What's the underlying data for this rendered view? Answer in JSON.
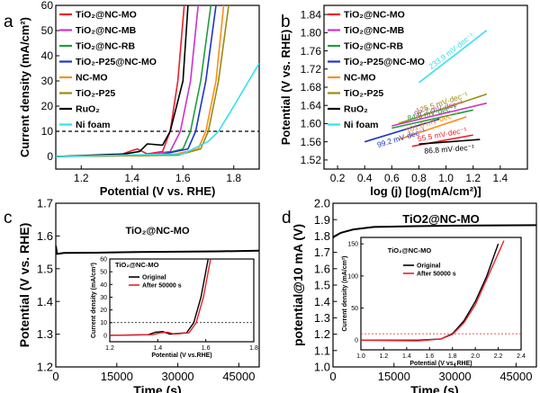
{
  "chart_data": [
    {
      "type": "line",
      "panel_label": "a",
      "xlabel": "Potential (V vs. RHE)",
      "ylabel": "Current density (mA/cm²)",
      "xlim": [
        1.1,
        1.9
      ],
      "ylim": [
        -5,
        60
      ],
      "xticks": [
        1.2,
        1.4,
        1.6,
        1.8
      ],
      "yticks": [
        0,
        10,
        20,
        30,
        40,
        50,
        60
      ],
      "reference_line": {
        "y": 10,
        "style": "dashed"
      },
      "legend_position": "top-left",
      "series": [
        {
          "name": "TiO₂@NC-MO",
          "color": "#e8202a",
          "points": [
            [
              1.1,
              0
            ],
            [
              1.35,
              0.5
            ],
            [
              1.39,
              2
            ],
            [
              1.42,
              3
            ],
            [
              1.46,
              1
            ],
            [
              1.52,
              2
            ],
            [
              1.55,
              10
            ],
            [
              1.58,
              30
            ],
            [
              1.605,
              60
            ]
          ]
        },
        {
          "name": "TiO₂@NC-MB",
          "color": "#cc33cc",
          "points": [
            [
              1.1,
              0
            ],
            [
              1.45,
              0.5
            ],
            [
              1.55,
              2
            ],
            [
              1.59,
              10
            ],
            [
              1.63,
              30
            ],
            [
              1.66,
              60
            ]
          ]
        },
        {
          "name": "TiO₂@NC-RB",
          "color": "#1f9e3c",
          "points": [
            [
              1.1,
              0
            ],
            [
              1.5,
              0.5
            ],
            [
              1.6,
              3
            ],
            [
              1.63,
              10
            ],
            [
              1.67,
              30
            ],
            [
              1.71,
              60
            ]
          ]
        },
        {
          "name": "TiO₂-P25@NC-MO",
          "color": "#1c34c9",
          "points": [
            [
              1.1,
              0
            ],
            [
              1.5,
              0.5
            ],
            [
              1.62,
              3
            ],
            [
              1.65,
              10
            ],
            [
              1.69,
              30
            ],
            [
              1.73,
              60
            ]
          ]
        },
        {
          "name": "NC-MO",
          "color": "#ff8c1a",
          "points": [
            [
              1.1,
              0
            ],
            [
              1.55,
              0.5
            ],
            [
              1.66,
              3
            ],
            [
              1.69,
              10
            ],
            [
              1.73,
              30
            ],
            [
              1.76,
              60
            ]
          ]
        },
        {
          "name": "TiO₂-P25",
          "color": "#9a8c10",
          "points": [
            [
              1.1,
              0
            ],
            [
              1.58,
              0.5
            ],
            [
              1.67,
              3
            ],
            [
              1.7,
              10
            ],
            [
              1.74,
              30
            ],
            [
              1.78,
              60
            ]
          ]
        },
        {
          "name": "RuO₂",
          "color": "#000000",
          "points": [
            [
              1.1,
              0
            ],
            [
              1.37,
              1
            ],
            [
              1.43,
              2
            ],
            [
              1.46,
              5
            ],
            [
              1.52,
              4.5
            ],
            [
              1.55,
              10
            ],
            [
              1.6,
              30
            ],
            [
              1.62,
              60
            ]
          ]
        },
        {
          "name": "Ni foam",
          "color": "#33e0f0",
          "points": [
            [
              1.1,
              0
            ],
            [
              1.6,
              1
            ],
            [
              1.7,
              6
            ],
            [
              1.74,
              10
            ],
            [
              1.8,
              20
            ],
            [
              1.9,
              37
            ]
          ]
        }
      ]
    },
    {
      "type": "line",
      "panel_label": "b",
      "xlabel": "log (j) [log(mA/cm²)]",
      "ylabel": "Potential (V vs. RHE)",
      "xlim": [
        0.1,
        1.6
      ],
      "ylim": [
        1.5,
        1.86
      ],
      "xticks": [
        0.2,
        0.4,
        0.6,
        0.8,
        1.0,
        1.2,
        1.4
      ],
      "yticks": [
        1.52,
        1.56,
        1.6,
        1.64,
        1.68,
        1.72,
        1.76,
        1.8,
        1.84
      ],
      "legend_position": "top-left",
      "series": [
        {
          "name": "TiO₂@NC-MO",
          "color": "#e8202a",
          "tafel_label": "55.5 mV·dec⁻¹",
          "points": [
            [
              0.75,
              1.55
            ],
            [
              1.2,
              1.575
            ]
          ]
        },
        {
          "name": "TiO₂@NC-MB",
          "color": "#cc33cc",
          "tafel_label": "97.7 mV·dec⁻¹",
          "points": [
            [
              0.6,
              1.595
            ],
            [
              1.3,
              1.645
            ]
          ]
        },
        {
          "name": "TiO₂@NC-RB",
          "color": "#1f9e3c",
          "tafel_label": "84.5 mV·dec⁻¹",
          "points": [
            [
              0.6,
              1.59
            ],
            [
              1.2,
              1.63
            ]
          ]
        },
        {
          "name": "TiO₂-P25@NC-MO",
          "color": "#1c34c9",
          "tafel_label": "99.2 mV·dec⁻¹",
          "points": [
            [
              0.4,
              1.56
            ],
            [
              0.95,
              1.61
            ]
          ]
        },
        {
          "name": "NC-MO",
          "color": "#ff8c1a",
          "tafel_label": "101.8 mV·dec⁻¹",
          "points": [
            [
              0.65,
              1.565
            ],
            [
              1.15,
              1.615
            ]
          ]
        },
        {
          "name": "TiO₂-P25",
          "color": "#9a8c10",
          "tafel_label": "125.5 mV·dec⁻¹",
          "points": [
            [
              0.65,
              1.6
            ],
            [
              1.3,
              1.665
            ]
          ]
        },
        {
          "name": "RuO₂",
          "color": "#000000",
          "tafel_label": "86.8 mV·dec⁻¹",
          "points": [
            [
              0.8,
              1.555
            ],
            [
              1.25,
              1.565
            ]
          ]
        },
        {
          "name": "Ni foam",
          "color": "#33e0f0",
          "tafel_label": "233.9 mV·dec⁻¹",
          "points": [
            [
              0.8,
              1.69
            ],
            [
              1.3,
              1.805
            ]
          ]
        }
      ]
    },
    {
      "type": "line",
      "panel_label": "c",
      "title": "TiO₂@NC-MO",
      "xlabel": "Time (s)",
      "ylabel": "Potential (V vs. RHE)",
      "xlim": [
        0,
        50000
      ],
      "ylim": [
        1.2,
        1.7
      ],
      "xticks": [
        0,
        15000,
        30000,
        45000
      ],
      "yticks": [
        1.2,
        1.3,
        1.4,
        1.5,
        1.6,
        1.7
      ],
      "series": [
        {
          "name": "",
          "color": "#000000",
          "points": [
            [
              0,
              1.57
            ],
            [
              300,
              1.545
            ],
            [
              2000,
              1.548
            ],
            [
              10000,
              1.549
            ],
            [
              20000,
              1.551
            ],
            [
              30000,
              1.552
            ],
            [
              40000,
              1.553
            ],
            [
              50000,
              1.555
            ]
          ]
        }
      ],
      "inset": {
        "title": "TiO₂@NC-MO",
        "xlabel": "Potential (V vs.RHE)",
        "ylabel": "Current density (mA/cm²)",
        "xlim": [
          1.2,
          1.8
        ],
        "ylim": [
          -5,
          60
        ],
        "xticks": [
          1.2,
          1.4,
          1.6,
          1.8
        ],
        "yticks": [
          0,
          10,
          20,
          30,
          40,
          50,
          60
        ],
        "reference_line": {
          "y": 10,
          "style": "dotted"
        },
        "series": [
          {
            "name": "Original",
            "color": "#000000",
            "points": [
              [
                1.2,
                0
              ],
              [
                1.36,
                0.5
              ],
              [
                1.39,
                2.5
              ],
              [
                1.42,
                3
              ],
              [
                1.45,
                1
              ],
              [
                1.52,
                2
              ],
              [
                1.55,
                10
              ],
              [
                1.58,
                30
              ],
              [
                1.61,
                60
              ]
            ]
          },
          {
            "name": "After 50000 s",
            "color": "#e8202a",
            "points": [
              [
                1.2,
                0
              ],
              [
                1.38,
                0.5
              ],
              [
                1.41,
                2
              ],
              [
                1.44,
                2.5
              ],
              [
                1.47,
                1
              ],
              [
                1.53,
                2
              ],
              [
                1.56,
                10
              ],
              [
                1.59,
                30
              ],
              [
                1.62,
                60
              ]
            ]
          }
        ]
      }
    },
    {
      "type": "line",
      "panel_label": "d",
      "title": "TiO2@NC-MO",
      "xlabel": "Time (s)",
      "ylabel": "potential@10 mA (V)",
      "xlim": [
        0,
        50000
      ],
      "ylim": [
        1.0,
        2.0
      ],
      "xticks": [
        0,
        15000,
        30000,
        45000
      ],
      "yticks": [
        1.0,
        1.1,
        1.2,
        1.3,
        1.4,
        1.5,
        1.6,
        1.7,
        1.8,
        1.9,
        2.0
      ],
      "series": [
        {
          "name": "",
          "color": "#000000",
          "points": [
            [
              0,
              1.79
            ],
            [
              500,
              1.8
            ],
            [
              2000,
              1.82
            ],
            [
              5000,
              1.84
            ],
            [
              10000,
              1.855
            ],
            [
              20000,
              1.86
            ],
            [
              30000,
              1.863
            ],
            [
              40000,
              1.865
            ],
            [
              50000,
              1.866
            ]
          ]
        }
      ],
      "inset": {
        "title": "TiO₂@NC-MO",
        "xlabel": "Potential (V vs. RHE)",
        "ylabel": "Current density (mA/cm²)",
        "xlim": [
          1.0,
          2.4
        ],
        "ylim": [
          -15,
          160
        ],
        "xticks": [
          1.0,
          1.2,
          1.4,
          1.6,
          1.8,
          2.0,
          2.2,
          2.4
        ],
        "yticks": [
          0,
          50,
          100,
          150
        ],
        "reference_line": {
          "y": 10,
          "style": "dotted"
        },
        "series": [
          {
            "name": "Original",
            "color": "#000000",
            "points": [
              [
                1.0,
                0
              ],
              [
                1.5,
                0
              ],
              [
                1.7,
                2
              ],
              [
                1.8,
                10
              ],
              [
                1.9,
                30
              ],
              [
                2.0,
                60
              ],
              [
                2.1,
                100
              ],
              [
                2.2,
                150
              ]
            ]
          },
          {
            "name": "After 50000 s",
            "color": "#e8202a",
            "points": [
              [
                1.0,
                0
              ],
              [
                1.5,
                -1
              ],
              [
                1.7,
                2
              ],
              [
                1.8,
                9
              ],
              [
                1.9,
                27
              ],
              [
                2.0,
                55
              ],
              [
                2.1,
                95
              ],
              [
                2.25,
                155
              ]
            ]
          }
        ]
      }
    }
  ]
}
